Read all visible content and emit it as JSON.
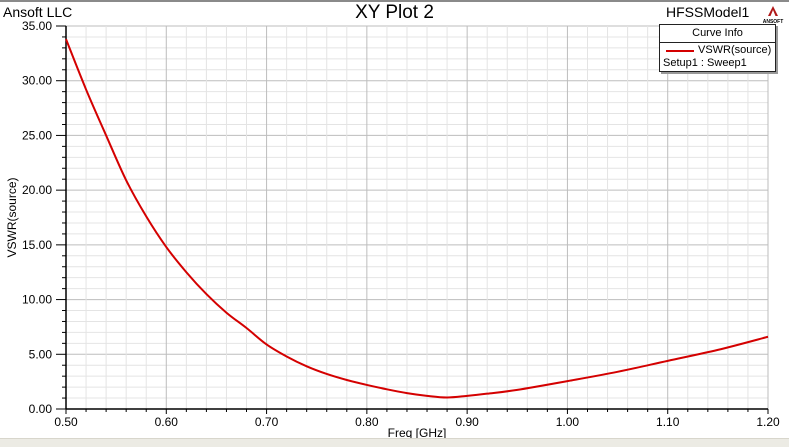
{
  "header": {
    "company": "Ansoft LLC",
    "title": "XY Plot 2",
    "model": "HFSSModel1",
    "logo_text": "ANSOFT"
  },
  "legend": {
    "title": "Curve Info",
    "entries": [
      {
        "name": "VSWR(source)",
        "sub": "Setup1 : Sweep1",
        "color": "#d40000"
      }
    ]
  },
  "chart_data": {
    "type": "line",
    "title": "XY Plot 2",
    "xlabel": "Freq [GHz]",
    "ylabel": "VSWR(source)",
    "xlim": [
      0.5,
      1.2
    ],
    "ylim": [
      0,
      35
    ],
    "xticks": [
      "0.50",
      "0.60",
      "0.70",
      "0.80",
      "0.90",
      "1.00",
      "1.10",
      "1.20"
    ],
    "yticks": [
      "0.00",
      "5.00",
      "10.00",
      "15.00",
      "20.00",
      "25.00",
      "30.00",
      "35.00"
    ],
    "grid": true,
    "legend_placement": "top-right",
    "series": [
      {
        "name": "VSWR(source)",
        "color": "#d40000",
        "x": [
          0.5,
          0.52,
          0.54,
          0.56,
          0.58,
          0.6,
          0.62,
          0.64,
          0.66,
          0.68,
          0.7,
          0.72,
          0.74,
          0.76,
          0.78,
          0.8,
          0.82,
          0.84,
          0.86,
          0.88,
          0.9,
          0.92,
          0.95,
          1.0,
          1.05,
          1.1,
          1.15,
          1.2
        ],
        "y": [
          33.8,
          29.2,
          25.0,
          20.9,
          17.6,
          14.8,
          12.5,
          10.5,
          8.8,
          7.4,
          5.9,
          4.8,
          3.9,
          3.2,
          2.65,
          2.2,
          1.8,
          1.45,
          1.2,
          1.05,
          1.2,
          1.4,
          1.75,
          2.55,
          3.4,
          4.4,
          5.4,
          6.6
        ]
      }
    ]
  }
}
